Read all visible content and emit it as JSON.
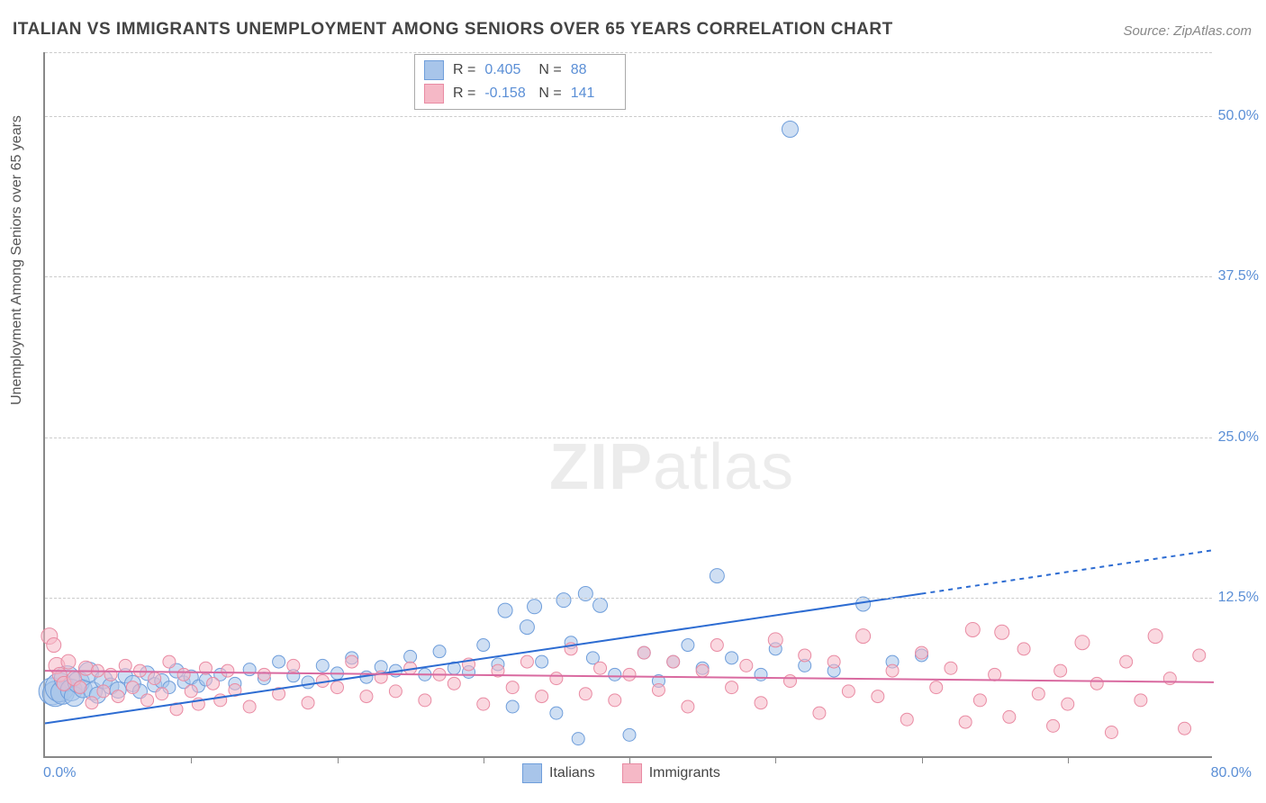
{
  "title": "ITALIAN VS IMMIGRANTS UNEMPLOYMENT AMONG SENIORS OVER 65 YEARS CORRELATION CHART",
  "source": "Source: ZipAtlas.com",
  "ylabel": "Unemployment Among Seniors over 65 years",
  "watermark_bold": "ZIP",
  "watermark_rest": "atlas",
  "chart": {
    "type": "scatter-correlation",
    "background_color": "#ffffff",
    "grid_color": "#cccccc",
    "grid_dash": "4,4",
    "axis_color": "#888888",
    "xlim": [
      0,
      80
    ],
    "ylim": [
      0,
      55
    ],
    "xaxis_left_label": "0.0%",
    "xaxis_right_label": "80.0%",
    "xtick_positions": [
      10,
      20,
      30,
      40,
      50,
      60,
      70
    ],
    "y_gridlines": [
      {
        "value": 12.5,
        "label": "12.5%"
      },
      {
        "value": 25.0,
        "label": "25.0%"
      },
      {
        "value": 37.5,
        "label": "37.5%"
      },
      {
        "value": 50.0,
        "label": "50.0%"
      }
    ],
    "tick_label_color": "#5b8fd6",
    "tick_label_fontsize": 16,
    "series": [
      {
        "name": "Italians",
        "color_fill": "#a8c5ea",
        "color_stroke": "#6f9edb",
        "fill_opacity": 0.55,
        "trend": {
          "x1": 0,
          "y1": 2.7,
          "x2_solid": 60,
          "y2_solid": 12.8,
          "x2_dash": 80,
          "y2_dash": 16.2,
          "stroke": "#2d6cd2",
          "width": 2,
          "dash": "5,5"
        },
        "stats": {
          "R": "0.405",
          "N": "88"
        },
        "points": [
          {
            "x": 0.5,
            "y": 5.2,
            "r": 15
          },
          {
            "x": 0.7,
            "y": 5.0,
            "r": 14
          },
          {
            "x": 1.0,
            "y": 5.5,
            "r": 16
          },
          {
            "x": 1.2,
            "y": 5.1,
            "r": 13
          },
          {
            "x": 1.5,
            "y": 6.2,
            "r": 14
          },
          {
            "x": 1.8,
            "y": 5.3,
            "r": 12
          },
          {
            "x": 2.0,
            "y": 4.8,
            "r": 11
          },
          {
            "x": 2.3,
            "y": 5.9,
            "r": 12
          },
          {
            "x": 2.6,
            "y": 5.4,
            "r": 10
          },
          {
            "x": 3.0,
            "y": 6.7,
            "r": 11
          },
          {
            "x": 3.3,
            "y": 5.2,
            "r": 10
          },
          {
            "x": 3.6,
            "y": 4.9,
            "r": 9
          },
          {
            "x": 4.0,
            "y": 6.1,
            "r": 10
          },
          {
            "x": 4.5,
            "y": 5.6,
            "r": 9
          },
          {
            "x": 5.0,
            "y": 5.3,
            "r": 9
          },
          {
            "x": 5.5,
            "y": 6.4,
            "r": 8
          },
          {
            "x": 6.0,
            "y": 5.8,
            "r": 9
          },
          {
            "x": 6.5,
            "y": 5.2,
            "r": 8
          },
          {
            "x": 7.0,
            "y": 6.6,
            "r": 8
          },
          {
            "x": 7.5,
            "y": 5.7,
            "r": 8
          },
          {
            "x": 8.0,
            "y": 6.0,
            "r": 8
          },
          {
            "x": 8.5,
            "y": 5.5,
            "r": 7
          },
          {
            "x": 9.0,
            "y": 6.8,
            "r": 8
          },
          {
            "x": 9.5,
            "y": 5.9,
            "r": 7
          },
          {
            "x": 10.0,
            "y": 6.3,
            "r": 8
          },
          {
            "x": 10.5,
            "y": 5.6,
            "r": 7
          },
          {
            "x": 11.0,
            "y": 6.1,
            "r": 7
          },
          {
            "x": 12.0,
            "y": 6.5,
            "r": 7
          },
          {
            "x": 13.0,
            "y": 5.8,
            "r": 7
          },
          {
            "x": 14.0,
            "y": 6.9,
            "r": 7
          },
          {
            "x": 15.0,
            "y": 6.2,
            "r": 7
          },
          {
            "x": 16.0,
            "y": 7.5,
            "r": 7
          },
          {
            "x": 17.0,
            "y": 6.4,
            "r": 7
          },
          {
            "x": 18.0,
            "y": 5.9,
            "r": 7
          },
          {
            "x": 19.0,
            "y": 7.2,
            "r": 7
          },
          {
            "x": 20.0,
            "y": 6.6,
            "r": 7
          },
          {
            "x": 21.0,
            "y": 7.8,
            "r": 7
          },
          {
            "x": 22.0,
            "y": 6.3,
            "r": 7
          },
          {
            "x": 23.0,
            "y": 7.1,
            "r": 7
          },
          {
            "x": 24.0,
            "y": 6.8,
            "r": 7
          },
          {
            "x": 25.0,
            "y": 7.9,
            "r": 7
          },
          {
            "x": 26.0,
            "y": 6.5,
            "r": 7
          },
          {
            "x": 27.0,
            "y": 8.3,
            "r": 7
          },
          {
            "x": 28.0,
            "y": 7.0,
            "r": 7
          },
          {
            "x": 29.0,
            "y": 6.7,
            "r": 7
          },
          {
            "x": 30.0,
            "y": 8.8,
            "r": 7
          },
          {
            "x": 31.0,
            "y": 7.3,
            "r": 7
          },
          {
            "x": 31.5,
            "y": 11.5,
            "r": 8
          },
          {
            "x": 32.0,
            "y": 4.0,
            "r": 7
          },
          {
            "x": 33.0,
            "y": 10.2,
            "r": 8
          },
          {
            "x": 33.5,
            "y": 11.8,
            "r": 8
          },
          {
            "x": 34.0,
            "y": 7.5,
            "r": 7
          },
          {
            "x": 35.0,
            "y": 3.5,
            "r": 7
          },
          {
            "x": 35.5,
            "y": 12.3,
            "r": 8
          },
          {
            "x": 36.0,
            "y": 9.0,
            "r": 7
          },
          {
            "x": 36.5,
            "y": 1.5,
            "r": 7
          },
          {
            "x": 37.0,
            "y": 12.8,
            "r": 8
          },
          {
            "x": 37.5,
            "y": 7.8,
            "r": 7
          },
          {
            "x": 38.0,
            "y": 11.9,
            "r": 8
          },
          {
            "x": 39.0,
            "y": 6.5,
            "r": 7
          },
          {
            "x": 40.0,
            "y": 1.8,
            "r": 7
          },
          {
            "x": 41.0,
            "y": 8.2,
            "r": 7
          },
          {
            "x": 42.0,
            "y": 6.0,
            "r": 7
          },
          {
            "x": 43.0,
            "y": 7.5,
            "r": 7
          },
          {
            "x": 44.0,
            "y": 8.8,
            "r": 7
          },
          {
            "x": 45.0,
            "y": 7.0,
            "r": 7
          },
          {
            "x": 46.0,
            "y": 14.2,
            "r": 8
          },
          {
            "x": 47.0,
            "y": 7.8,
            "r": 7
          },
          {
            "x": 49.0,
            "y": 6.5,
            "r": 7
          },
          {
            "x": 50.0,
            "y": 8.5,
            "r": 7
          },
          {
            "x": 51.0,
            "y": 49.0,
            "r": 9
          },
          {
            "x": 52.0,
            "y": 7.2,
            "r": 7
          },
          {
            "x": 54.0,
            "y": 6.8,
            "r": 7
          },
          {
            "x": 56.0,
            "y": 12.0,
            "r": 8
          },
          {
            "x": 58.0,
            "y": 7.5,
            "r": 7
          },
          {
            "x": 60.0,
            "y": 8.0,
            "r": 7
          }
        ]
      },
      {
        "name": "Immigrants",
        "color_fill": "#f5b8c6",
        "color_stroke": "#e98ba3",
        "fill_opacity": 0.55,
        "trend": {
          "x1": 0,
          "y1": 6.8,
          "x2_solid": 80,
          "y2_solid": 5.9,
          "stroke": "#d96aa0",
          "width": 2
        },
        "stats": {
          "R": "-0.158",
          "N": "141"
        },
        "points": [
          {
            "x": 0.3,
            "y": 9.5,
            "r": 9
          },
          {
            "x": 0.6,
            "y": 8.8,
            "r": 8
          },
          {
            "x": 0.8,
            "y": 7.2,
            "r": 9
          },
          {
            "x": 1.0,
            "y": 6.5,
            "r": 8
          },
          {
            "x": 1.3,
            "y": 5.8,
            "r": 8
          },
          {
            "x": 1.6,
            "y": 7.5,
            "r": 8
          },
          {
            "x": 2.0,
            "y": 6.2,
            "r": 8
          },
          {
            "x": 2.4,
            "y": 5.5,
            "r": 7
          },
          {
            "x": 2.8,
            "y": 7.0,
            "r": 8
          },
          {
            "x": 3.2,
            "y": 4.3,
            "r": 7
          },
          {
            "x": 3.6,
            "y": 6.8,
            "r": 7
          },
          {
            "x": 4.0,
            "y": 5.2,
            "r": 7
          },
          {
            "x": 4.5,
            "y": 6.5,
            "r": 7
          },
          {
            "x": 5.0,
            "y": 4.8,
            "r": 7
          },
          {
            "x": 5.5,
            "y": 7.2,
            "r": 7
          },
          {
            "x": 6.0,
            "y": 5.5,
            "r": 7
          },
          {
            "x": 6.5,
            "y": 6.8,
            "r": 7
          },
          {
            "x": 7.0,
            "y": 4.5,
            "r": 7
          },
          {
            "x": 7.5,
            "y": 6.2,
            "r": 7
          },
          {
            "x": 8.0,
            "y": 5.0,
            "r": 7
          },
          {
            "x": 8.5,
            "y": 7.5,
            "r": 7
          },
          {
            "x": 9.0,
            "y": 3.8,
            "r": 7
          },
          {
            "x": 9.5,
            "y": 6.5,
            "r": 7
          },
          {
            "x": 10.0,
            "y": 5.2,
            "r": 7
          },
          {
            "x": 10.5,
            "y": 4.2,
            "r": 7
          },
          {
            "x": 11.0,
            "y": 7.0,
            "r": 7
          },
          {
            "x": 11.5,
            "y": 5.8,
            "r": 7
          },
          {
            "x": 12.0,
            "y": 4.5,
            "r": 7
          },
          {
            "x": 12.5,
            "y": 6.8,
            "r": 7
          },
          {
            "x": 13.0,
            "y": 5.3,
            "r": 7
          },
          {
            "x": 14.0,
            "y": 4.0,
            "r": 7
          },
          {
            "x": 15.0,
            "y": 6.5,
            "r": 7
          },
          {
            "x": 16.0,
            "y": 5.0,
            "r": 7
          },
          {
            "x": 17.0,
            "y": 7.2,
            "r": 7
          },
          {
            "x": 18.0,
            "y": 4.3,
            "r": 7
          },
          {
            "x": 19.0,
            "y": 6.0,
            "r": 7
          },
          {
            "x": 20.0,
            "y": 5.5,
            "r": 7
          },
          {
            "x": 21.0,
            "y": 7.5,
            "r": 7
          },
          {
            "x": 22.0,
            "y": 4.8,
            "r": 7
          },
          {
            "x": 23.0,
            "y": 6.3,
            "r": 7
          },
          {
            "x": 24.0,
            "y": 5.2,
            "r": 7
          },
          {
            "x": 25.0,
            "y": 7.0,
            "r": 7
          },
          {
            "x": 26.0,
            "y": 4.5,
            "r": 7
          },
          {
            "x": 27.0,
            "y": 6.5,
            "r": 7
          },
          {
            "x": 28.0,
            "y": 5.8,
            "r": 7
          },
          {
            "x": 29.0,
            "y": 7.3,
            "r": 7
          },
          {
            "x": 30.0,
            "y": 4.2,
            "r": 7
          },
          {
            "x": 31.0,
            "y": 6.8,
            "r": 7
          },
          {
            "x": 32.0,
            "y": 5.5,
            "r": 7
          },
          {
            "x": 33.0,
            "y": 7.5,
            "r": 7
          },
          {
            "x": 34.0,
            "y": 4.8,
            "r": 7
          },
          {
            "x": 35.0,
            "y": 6.2,
            "r": 7
          },
          {
            "x": 36.0,
            "y": 8.5,
            "r": 7
          },
          {
            "x": 37.0,
            "y": 5.0,
            "r": 7
          },
          {
            "x": 38.0,
            "y": 7.0,
            "r": 7
          },
          {
            "x": 39.0,
            "y": 4.5,
            "r": 7
          },
          {
            "x": 40.0,
            "y": 6.5,
            "r": 7
          },
          {
            "x": 41.0,
            "y": 8.2,
            "r": 7
          },
          {
            "x": 42.0,
            "y": 5.3,
            "r": 7
          },
          {
            "x": 43.0,
            "y": 7.5,
            "r": 7
          },
          {
            "x": 44.0,
            "y": 4.0,
            "r": 7
          },
          {
            "x": 45.0,
            "y": 6.8,
            "r": 7
          },
          {
            "x": 46.0,
            "y": 8.8,
            "r": 7
          },
          {
            "x": 47.0,
            "y": 5.5,
            "r": 7
          },
          {
            "x": 48.0,
            "y": 7.2,
            "r": 7
          },
          {
            "x": 49.0,
            "y": 4.3,
            "r": 7
          },
          {
            "x": 50.0,
            "y": 9.2,
            "r": 8
          },
          {
            "x": 51.0,
            "y": 6.0,
            "r": 7
          },
          {
            "x": 52.0,
            "y": 8.0,
            "r": 7
          },
          {
            "x": 53.0,
            "y": 3.5,
            "r": 7
          },
          {
            "x": 54.0,
            "y": 7.5,
            "r": 7
          },
          {
            "x": 55.0,
            "y": 5.2,
            "r": 7
          },
          {
            "x": 56.0,
            "y": 9.5,
            "r": 8
          },
          {
            "x": 57.0,
            "y": 4.8,
            "r": 7
          },
          {
            "x": 58.0,
            "y": 6.8,
            "r": 7
          },
          {
            "x": 59.0,
            "y": 3.0,
            "r": 7
          },
          {
            "x": 60.0,
            "y": 8.2,
            "r": 7
          },
          {
            "x": 61.0,
            "y": 5.5,
            "r": 7
          },
          {
            "x": 62.0,
            "y": 7.0,
            "r": 7
          },
          {
            "x": 63.0,
            "y": 2.8,
            "r": 7
          },
          {
            "x": 63.5,
            "y": 10.0,
            "r": 8
          },
          {
            "x": 64.0,
            "y": 4.5,
            "r": 7
          },
          {
            "x": 65.0,
            "y": 6.5,
            "r": 7
          },
          {
            "x": 65.5,
            "y": 9.8,
            "r": 8
          },
          {
            "x": 66.0,
            "y": 3.2,
            "r": 7
          },
          {
            "x": 67.0,
            "y": 8.5,
            "r": 7
          },
          {
            "x": 68.0,
            "y": 5.0,
            "r": 7
          },
          {
            "x": 69.0,
            "y": 2.5,
            "r": 7
          },
          {
            "x": 69.5,
            "y": 6.8,
            "r": 7
          },
          {
            "x": 70.0,
            "y": 4.2,
            "r": 7
          },
          {
            "x": 71.0,
            "y": 9.0,
            "r": 8
          },
          {
            "x": 72.0,
            "y": 5.8,
            "r": 7
          },
          {
            "x": 73.0,
            "y": 2.0,
            "r": 7
          },
          {
            "x": 74.0,
            "y": 7.5,
            "r": 7
          },
          {
            "x": 75.0,
            "y": 4.5,
            "r": 7
          },
          {
            "x": 76.0,
            "y": 9.5,
            "r": 8
          },
          {
            "x": 77.0,
            "y": 6.2,
            "r": 7
          },
          {
            "x": 78.0,
            "y": 2.3,
            "r": 7
          },
          {
            "x": 79.0,
            "y": 8.0,
            "r": 7
          }
        ]
      }
    ]
  }
}
